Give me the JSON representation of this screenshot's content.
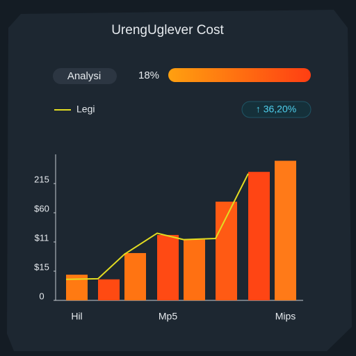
{
  "header": {
    "pill": "Analysi",
    "percent": "18%",
    "badge": "↑ 36,20%"
  },
  "chart_data": {
    "type": "bar",
    "title": "UrengUglever Cost",
    "categories": [
      "Hil",
      null,
      null,
      "Mp5",
      null,
      null,
      null,
      "Mips"
    ],
    "values": [
      44,
      36,
      81,
      112,
      104,
      169,
      220,
      239
    ],
    "colors": [
      "#ff7a12",
      "#ff4a12",
      "#ff7412",
      "#ff4a14",
      "#ff7012",
      "#ff5a14",
      "#ff4514",
      "#ff7a18"
    ],
    "series": [
      {
        "name": "Legi",
        "color": "#e2dc22",
        "values": [
          36,
          37,
          79,
          115,
          104,
          106,
          217,
          null
        ]
      }
    ],
    "ylim": [
      0,
      250
    ],
    "yticks": [
      0,
      {
        "value": 50,
        "label": "$15"
      },
      {
        "value": 100,
        "label": "$11"
      },
      {
        "value": 150,
        "label": "$60"
      },
      {
        "value": 200,
        "label": "215"
      }
    ]
  }
}
